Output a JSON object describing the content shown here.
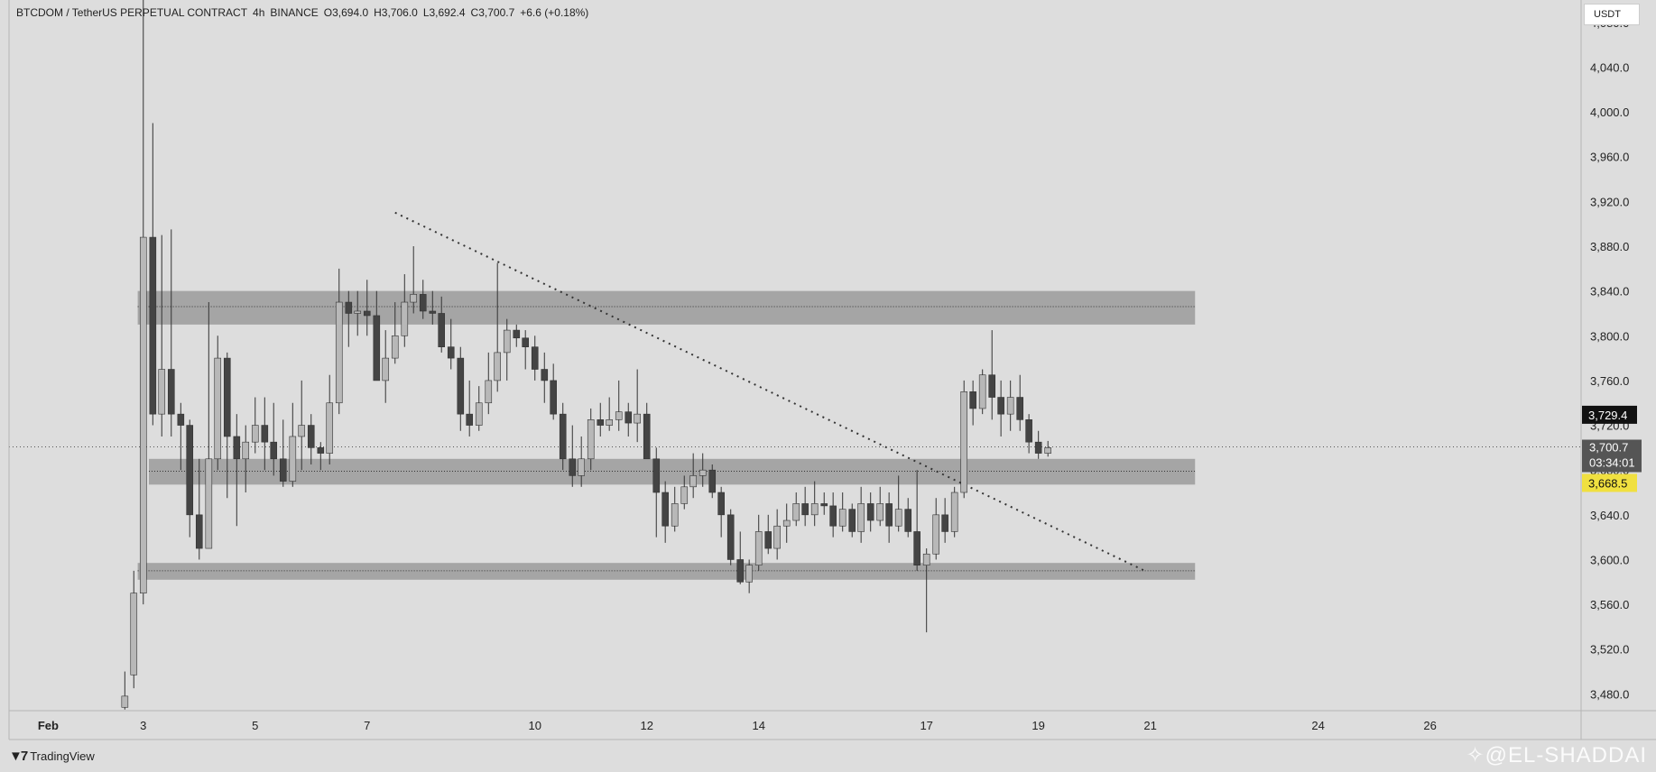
{
  "header": {
    "symbol": "BTCDOM / TetherUS PERPETUAL CONTRACT",
    "interval": "4h",
    "exchange": "BINANCE",
    "open": "O3,694.0",
    "high": "H3,706.0",
    "low": "L3,692.4",
    "close": "C3,700.7",
    "change": "+6.6 (+0.18%)"
  },
  "currency_button": "USDT",
  "price_tags": {
    "black": "3,729.4",
    "current": "3,700.7",
    "countdown": "03:34:01",
    "yellow": "3,668.5"
  },
  "colors": {
    "background": "#dddddd",
    "zone": "#9e9e9e",
    "up_candle": "#b8b8b8",
    "down_candle": "#444444",
    "tag_black": "#111111",
    "tag_current": "#555555",
    "tag_yellow": "#f0e040"
  },
  "footer": {
    "brand": "TradingView",
    "logo_icon": "tradingview-logo-icon"
  },
  "watermark": "@EL-SHADDAI",
  "chart_data": {
    "type": "candlestick",
    "ylim": [
      3465,
      4100
    ],
    "y_ticks": [
      "4,080.0",
      "4,040.0",
      "4,000.0",
      "3,960.0",
      "3,920.0",
      "3,880.0",
      "3,840.0",
      "3,800.0",
      "3,760.0",
      "3,720.0",
      "3,680.0",
      "3,640.0",
      "3,600.0",
      "3,560.0",
      "3,520.0",
      "3,480.0"
    ],
    "x_ticks": [
      {
        "label": "Feb",
        "pos": -1.7,
        "month": true
      },
      {
        "label": "3",
        "pos": 0
      },
      {
        "label": "5",
        "pos": 2
      },
      {
        "label": "7",
        "pos": 4
      },
      {
        "label": "10",
        "pos": 7
      },
      {
        "label": "12",
        "pos": 9
      },
      {
        "label": "14",
        "pos": 11
      },
      {
        "label": "17",
        "pos": 14
      },
      {
        "label": "19",
        "pos": 16
      },
      {
        "label": "21",
        "pos": 18
      },
      {
        "label": "24",
        "pos": 21
      },
      {
        "label": "26",
        "pos": 23
      }
    ],
    "x_range": [
      -2.4,
      25.7
    ],
    "zones": [
      {
        "x_from": -0.1,
        "x_to": 18.8,
        "y_low": 3810,
        "y_high": 3840,
        "mid": 3826
      },
      {
        "x_from": 0.1,
        "x_to": 18.8,
        "y_low": 3667,
        "y_high": 3690,
        "mid": 3679
      },
      {
        "x_from": -0.1,
        "x_to": 18.8,
        "y_low": 3582,
        "y_high": 3597,
        "mid": 3590
      }
    ],
    "trendline": {
      "from": [
        4.5,
        3910
      ],
      "to": [
        17.9,
        3590
      ]
    },
    "current_price_line": 3700.7,
    "candles": [
      [
        -0.33,
        3468,
        3478,
        3466,
        3500
      ],
      [
        -0.17,
        3497,
        3570,
        3485,
        3590
      ],
      [
        0.0,
        3570,
        3888,
        3560,
        4100
      ],
      [
        0.17,
        3888,
        3730,
        3720,
        3990
      ],
      [
        0.33,
        3730,
        3770,
        3710,
        3890
      ],
      [
        0.5,
        3770,
        3730,
        3710,
        3895
      ],
      [
        0.67,
        3730,
        3720,
        3680,
        3740
      ],
      [
        0.83,
        3720,
        3640,
        3620,
        3725
      ],
      [
        1.0,
        3640,
        3610,
        3600,
        3690
      ],
      [
        1.17,
        3610,
        3690,
        3610,
        3830
      ],
      [
        1.33,
        3690,
        3780,
        3680,
        3800
      ],
      [
        1.5,
        3780,
        3710,
        3655,
        3785
      ],
      [
        1.67,
        3710,
        3690,
        3630,
        3730
      ],
      [
        1.83,
        3690,
        3705,
        3660,
        3720
      ],
      [
        2.0,
        3705,
        3720,
        3695,
        3745
      ],
      [
        2.17,
        3720,
        3705,
        3680,
        3745
      ],
      [
        2.33,
        3705,
        3690,
        3675,
        3740
      ],
      [
        2.5,
        3690,
        3670,
        3665,
        3725
      ],
      [
        2.67,
        3670,
        3710,
        3665,
        3740
      ],
      [
        2.83,
        3710,
        3720,
        3680,
        3760
      ],
      [
        3.0,
        3720,
        3700,
        3685,
        3730
      ],
      [
        3.17,
        3700,
        3695,
        3680,
        3705
      ],
      [
        3.33,
        3695,
        3740,
        3685,
        3765
      ],
      [
        3.5,
        3740,
        3830,
        3730,
        3860
      ],
      [
        3.67,
        3830,
        3820,
        3790,
        3840
      ],
      [
        3.83,
        3820,
        3822,
        3800,
        3840
      ],
      [
        4.0,
        3822,
        3818,
        3800,
        3850
      ],
      [
        4.17,
        3818,
        3760,
        3760,
        3840
      ],
      [
        4.33,
        3760,
        3780,
        3740,
        3805
      ],
      [
        4.5,
        3780,
        3800,
        3775,
        3830
      ],
      [
        4.67,
        3800,
        3830,
        3790,
        3855
      ],
      [
        4.83,
        3830,
        3837,
        3820,
        3880
      ],
      [
        5.0,
        3837,
        3822,
        3815,
        3850
      ],
      [
        5.17,
        3822,
        3820,
        3810,
        3840
      ],
      [
        5.33,
        3820,
        3790,
        3785,
        3835
      ],
      [
        5.5,
        3790,
        3780,
        3770,
        3815
      ],
      [
        5.67,
        3780,
        3730,
        3715,
        3790
      ],
      [
        5.83,
        3730,
        3720,
        3710,
        3760
      ],
      [
        6.0,
        3720,
        3740,
        3715,
        3755
      ],
      [
        6.17,
        3740,
        3760,
        3730,
        3785
      ],
      [
        6.33,
        3760,
        3785,
        3750,
        3865
      ],
      [
        6.5,
        3785,
        3805,
        3760,
        3815
      ],
      [
        6.67,
        3805,
        3798,
        3790,
        3810
      ],
      [
        6.83,
        3798,
        3790,
        3770,
        3805
      ],
      [
        7.0,
        3790,
        3770,
        3760,
        3800
      ],
      [
        7.17,
        3770,
        3760,
        3740,
        3785
      ],
      [
        7.33,
        3760,
        3730,
        3725,
        3775
      ],
      [
        7.5,
        3730,
        3690,
        3680,
        3740
      ],
      [
        7.67,
        3690,
        3675,
        3665,
        3720
      ],
      [
        7.83,
        3675,
        3690,
        3665,
        3710
      ],
      [
        8.0,
        3690,
        3725,
        3680,
        3735
      ],
      [
        8.17,
        3725,
        3720,
        3710,
        3740
      ],
      [
        8.33,
        3720,
        3725,
        3715,
        3745
      ],
      [
        8.5,
        3725,
        3732,
        3715,
        3760
      ],
      [
        8.67,
        3732,
        3722,
        3710,
        3740
      ],
      [
        8.83,
        3722,
        3730,
        3705,
        3770
      ],
      [
        9.0,
        3730,
        3690,
        3690,
        3740
      ],
      [
        9.17,
        3690,
        3660,
        3620,
        3700
      ],
      [
        9.33,
        3660,
        3630,
        3615,
        3670
      ],
      [
        9.5,
        3630,
        3650,
        3625,
        3665
      ],
      [
        9.67,
        3650,
        3665,
        3645,
        3675
      ],
      [
        9.83,
        3665,
        3675,
        3655,
        3695
      ],
      [
        10.0,
        3675,
        3680,
        3665,
        3695
      ],
      [
        10.17,
        3680,
        3660,
        3655,
        3685
      ],
      [
        10.33,
        3660,
        3640,
        3620,
        3665
      ],
      [
        10.5,
        3640,
        3600,
        3595,
        3645
      ],
      [
        10.67,
        3600,
        3580,
        3578,
        3625
      ],
      [
        10.83,
        3580,
        3595,
        3570,
        3600
      ],
      [
        11.0,
        3595,
        3625,
        3590,
        3640
      ],
      [
        11.17,
        3625,
        3610,
        3605,
        3640
      ],
      [
        11.33,
        3610,
        3630,
        3600,
        3645
      ],
      [
        11.5,
        3630,
        3635,
        3615,
        3650
      ],
      [
        11.67,
        3635,
        3650,
        3630,
        3660
      ],
      [
        11.83,
        3650,
        3640,
        3630,
        3665
      ],
      [
        12.0,
        3640,
        3650,
        3630,
        3670
      ],
      [
        12.17,
        3650,
        3648,
        3640,
        3660
      ],
      [
        12.33,
        3648,
        3630,
        3620,
        3660
      ],
      [
        12.5,
        3630,
        3645,
        3625,
        3660
      ],
      [
        12.67,
        3645,
        3625,
        3620,
        3650
      ],
      [
        12.83,
        3625,
        3650,
        3615,
        3665
      ],
      [
        13.0,
        3650,
        3635,
        3625,
        3660
      ],
      [
        13.17,
        3635,
        3650,
        3630,
        3665
      ],
      [
        13.33,
        3650,
        3630,
        3615,
        3660
      ],
      [
        13.5,
        3630,
        3645,
        3625,
        3675
      ],
      [
        13.67,
        3645,
        3625,
        3620,
        3655
      ],
      [
        13.83,
        3625,
        3595,
        3590,
        3680
      ],
      [
        14.0,
        3595,
        3605,
        3535,
        3610
      ],
      [
        14.17,
        3605,
        3640,
        3600,
        3655
      ],
      [
        14.33,
        3640,
        3625,
        3615,
        3655
      ],
      [
        14.5,
        3625,
        3660,
        3620,
        3665
      ],
      [
        14.67,
        3660,
        3750,
        3655,
        3760
      ],
      [
        14.83,
        3750,
        3735,
        3720,
        3760
      ],
      [
        15.0,
        3735,
        3765,
        3730,
        3770
      ],
      [
        15.17,
        3765,
        3745,
        3725,
        3805
      ],
      [
        15.33,
        3745,
        3730,
        3710,
        3760
      ],
      [
        15.5,
        3730,
        3745,
        3715,
        3760
      ],
      [
        15.67,
        3745,
        3725,
        3715,
        3765
      ],
      [
        15.83,
        3725,
        3705,
        3695,
        3730
      ],
      [
        16.0,
        3705,
        3695,
        3690,
        3715
      ],
      [
        16.17,
        3695,
        3700,
        3692,
        3706
      ]
    ]
  }
}
